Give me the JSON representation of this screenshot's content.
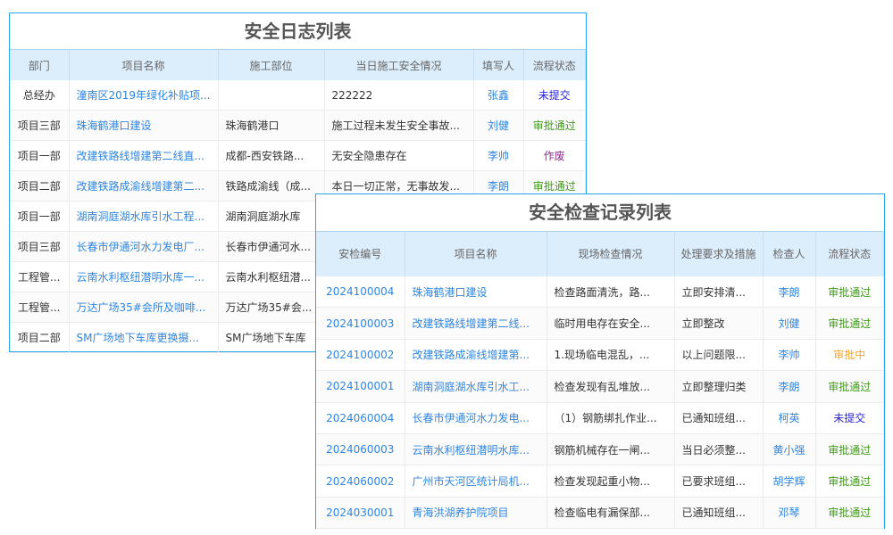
{
  "log_table": {
    "title": "安全日志列表",
    "columns": [
      "部门",
      "项目名称",
      "施工部位",
      "当日施工安全情况",
      "填写人",
      "流程状态"
    ],
    "rows": [
      {
        "dept": "总经办",
        "project": "潼南区2019年绿化补贴项...",
        "location": "",
        "situation": "222222",
        "writer": "张鑫",
        "status": "未提交",
        "status_type": "blue"
      },
      {
        "dept": "项目三部",
        "project": "珠海鹤港口建设",
        "location": "珠海鹤港口",
        "situation": "施工过程未发生安全事故...",
        "writer": "刘健",
        "status": "审批通过",
        "status_type": "green"
      },
      {
        "dept": "项目一部",
        "project": "改建铁路线增建第二线直...",
        "location": "成都-西安铁路...",
        "situation": "无安全隐患存在",
        "writer": "李帅",
        "status": "作废",
        "status_type": "purple"
      },
      {
        "dept": "项目二部",
        "project": "改建铁路成渝线增建第二...",
        "location": "铁路成渝线（成...",
        "situation": "本日一切正常，无事故发...",
        "writer": "李朗",
        "status": "审批通过",
        "status_type": "green"
      },
      {
        "dept": "项目一部",
        "project": "湖南洞庭湖水库引水工程...",
        "location": "湖南洞庭湖水库",
        "situation": "",
        "writer": "",
        "status": "",
        "status_type": "green"
      },
      {
        "dept": "项目三部",
        "project": "长春市伊通河水力发电厂...",
        "location": "长春市伊通河水...",
        "situation": "",
        "writer": "",
        "status": "",
        "status_type": "green"
      },
      {
        "dept": "工程管...",
        "project": "云南水利枢纽潜明水库一...",
        "location": "云南水利枢纽潜...",
        "situation": "",
        "writer": "",
        "status": "",
        "status_type": "green"
      },
      {
        "dept": "工程管...",
        "project": "万达广场35#会所及咖啡...",
        "location": "万达广场35#会...",
        "situation": "",
        "writer": "",
        "status": "",
        "status_type": "green"
      },
      {
        "dept": "项目二部",
        "project": "SM广场地下车库更换摄...",
        "location": "SM广场地下车库",
        "situation": "",
        "writer": "",
        "status": "",
        "status_type": "green"
      }
    ]
  },
  "inspection_table": {
    "title": "安全检查记录列表",
    "columns": [
      "安检编号",
      "项目名称",
      "现场检查情况",
      "处理要求及措施",
      "检查人",
      "流程状态"
    ],
    "rows": [
      {
        "id": "2024100004",
        "project": "珠海鹤港口建设",
        "finding": "检查路面清洗，路...",
        "measure": "立即安排清...",
        "inspector": "李朗",
        "status": "审批通过",
        "status_type": "green"
      },
      {
        "id": "2024100003",
        "project": "改建铁路线增建第二线...",
        "finding": "临时用电存在安全...",
        "measure": "立即整改",
        "inspector": "刘健",
        "status": "审批通过",
        "status_type": "green"
      },
      {
        "id": "2024100002",
        "project": "改建铁路成渝线增建第...",
        "finding": "1.现场临电混乱，...",
        "measure": "以上问题限...",
        "inspector": "李帅",
        "status": "审批中",
        "status_type": "orange"
      },
      {
        "id": "2024100001",
        "project": "湖南洞庭湖水库引水工...",
        "finding": "检查发现有乱堆放...",
        "measure": "立即整理归类",
        "inspector": "李朗",
        "status": "审批通过",
        "status_type": "green"
      },
      {
        "id": "2024060004",
        "project": "长春市伊通河水力发电...",
        "finding": "（1）钢筋绑扎作业...",
        "measure": "已通知班组...",
        "inspector": "柯英",
        "status": "未提交",
        "status_type": "blue"
      },
      {
        "id": "2024060003",
        "project": "云南水利枢纽潜明水库...",
        "finding": "钢筋机械存在一闸...",
        "measure": "当日必须整...",
        "inspector": "黄小强",
        "status": "审批通过",
        "status_type": "green"
      },
      {
        "id": "2024060002",
        "project": "广州市天河区统计局机...",
        "finding": "检查发现起重小物...",
        "measure": "已要求班组...",
        "inspector": "胡学辉",
        "status": "审批通过",
        "status_type": "green"
      },
      {
        "id": "2024030001",
        "project": "青海洪湖养护院项目",
        "finding": "检查临电有漏保部...",
        "measure": "已通知班组...",
        "inspector": "邓琴",
        "status": "审批通过",
        "status_type": "green"
      }
    ]
  },
  "colors": {
    "border": "#27a6ea",
    "header_bg": "#dcedfb",
    "link": "#2f86de",
    "approved": "#3d9b16",
    "pending": "#f5a623",
    "void": "#8a2f8e",
    "unsubmitted": "#2a23d8"
  }
}
